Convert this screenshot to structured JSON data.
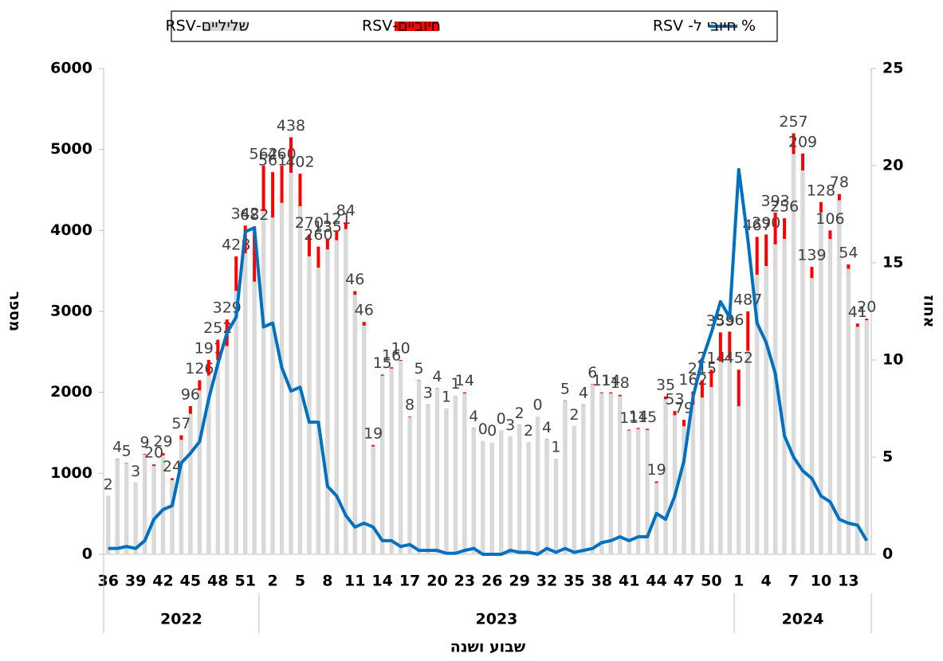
{
  "chart_data": {
    "type": "bar_line",
    "legend": "top",
    "y_label": "מספר",
    "y2_label": "אחוז",
    "x_label": "שבוע ושנה",
    "categories": [
      "36",
      null,
      null,
      "39",
      null,
      null,
      "42",
      null,
      null,
      "45",
      null,
      null,
      "48",
      null,
      null,
      "51",
      null,
      null,
      "2",
      null,
      null,
      "5",
      null,
      null,
      "8",
      null,
      null,
      "11",
      null,
      null,
      "14",
      null,
      null,
      "17",
      null,
      null,
      "20",
      null,
      null,
      "23",
      null,
      null,
      "26",
      null,
      null,
      "29",
      null,
      null,
      "32",
      null,
      null,
      "35",
      null,
      null,
      "38",
      null,
      null,
      "41",
      null,
      null,
      "44",
      null,
      null,
      "47",
      null,
      null,
      "50",
      null,
      null,
      "1",
      null,
      null,
      "4",
      null,
      null,
      "7",
      null,
      null,
      "10",
      null,
      null,
      "13",
      null,
      null
    ],
    "year_groups": [
      {
        "label": "2022",
        "span": 17
      },
      {
        "label": "2023",
        "span": 52
      },
      {
        "label": "2024",
        "span": 15
      }
    ],
    "series": [
      {
        "name": "שליליים-RSV",
        "color": "#d9d9d9",
        "kind": "bar",
        "values": [
          718,
          1176,
          1125,
          877,
          1231,
          1090,
          1221,
          916,
          1413,
          1734,
          2024,
          2209,
          2398,
          2571,
          3252,
          3718,
          3368,
          4238,
          4159,
          4340,
          4712,
          4298,
          3680,
          3540,
          3765,
          3879,
          4016,
          3204,
          2824,
          1331,
          2205,
          2294,
          2390,
          1692,
          2145,
          1847,
          2046,
          1799,
          1959,
          1986,
          1556,
          1400,
          1380,
          1530,
          1447,
          1598,
          1378,
          1700,
          1416,
          1179,
          1895,
          1578,
          1846,
          2094,
          1989,
          1986,
          1952,
          1529,
          1546,
          1535,
          881,
          1915,
          1717,
          1581,
          1848,
          1935,
          2066,
          2381,
          2414,
          1828,
          2513,
          3453,
          3560,
          3827,
          3894,
          4943,
          4741,
          3411,
          4222,
          3894,
          4372,
          3526,
          2809,
          2890
        ]
      },
      {
        "name": "חיוביים-RSV",
        "color": "#ff0000",
        "kind": "bar",
        "labels": true,
        "values": [
          2,
          4,
          5,
          3,
          9,
          20,
          29,
          24,
          57,
          96,
          126,
          191,
          252,
          329,
          428,
          342,
          682,
          562,
          561,
          460,
          438,
          402,
          270,
          260,
          135,
          121,
          84,
          46,
          46,
          19,
          15,
          16,
          10,
          8,
          5,
          3,
          4,
          1,
          1,
          14,
          4,
          0,
          0,
          0,
          3,
          2,
          2,
          0,
          4,
          1,
          5,
          2,
          4,
          6,
          11,
          14,
          18,
          11,
          14,
          15,
          19,
          35,
          53,
          79,
          162,
          215,
          214,
          359,
          336,
          452,
          487,
          467,
          390,
          393,
          256,
          257,
          209,
          139,
          128,
          106,
          78,
          54,
          41,
          20
        ]
      },
      {
        "name": "% חיובי ל- RSV",
        "color": "#0070c0",
        "kind": "line",
        "axis": "y2",
        "values": [
          0.3,
          0.3,
          0.4,
          0.3,
          0.7,
          1.8,
          2.3,
          2.5,
          4.7,
          5.2,
          5.8,
          8.0,
          9.8,
          11.4,
          12.2,
          16.6,
          16.8,
          11.7,
          11.9,
          9.6,
          8.4,
          8.6,
          6.8,
          6.8,
          3.5,
          3.0,
          2.0,
          1.4,
          1.6,
          1.4,
          0.7,
          0.7,
          0.4,
          0.5,
          0.2,
          0.2,
          0.2,
          0.05,
          0.05,
          0.2,
          0.3,
          0,
          0,
          0,
          0.2,
          0.1,
          0.1,
          0,
          0.3,
          0.1,
          0.3,
          0.1,
          0.2,
          0.3,
          0.6,
          0.7,
          0.9,
          0.7,
          0.9,
          0.9,
          2.1,
          1.8,
          3.0,
          4.8,
          8.1,
          10.0,
          11.4,
          13.0,
          12.2,
          19.8,
          16.2,
          11.9,
          10.9,
          9.3,
          6.1,
          5.0,
          4.3,
          3.9,
          3.0,
          2.7,
          1.8,
          1.6,
          1.5,
          0.7
        ]
      }
    ],
    "ylim": [
      0,
      6000
    ],
    "yticks": [
      0,
      1000,
      2000,
      3000,
      4000,
      5000,
      6000
    ],
    "y2lim": [
      0,
      25
    ],
    "y2ticks": [
      0,
      5,
      10,
      15,
      20,
      25
    ]
  }
}
